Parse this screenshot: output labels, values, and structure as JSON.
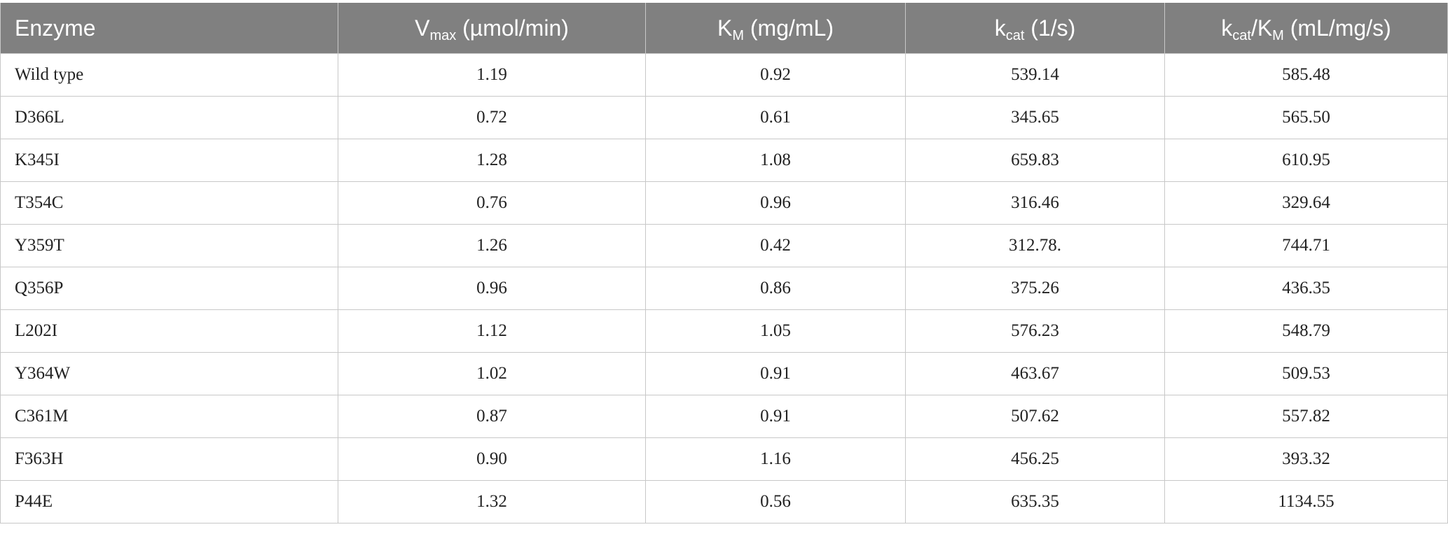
{
  "table": {
    "header": [
      [
        "Enzyme"
      ],
      [
        "V",
        "max",
        " (µmol/min)"
      ],
      [
        "K",
        "M",
        " (mg/mL)"
      ],
      [
        "k",
        "cat",
        " (1/s)"
      ],
      [
        "k",
        "cat",
        "/K",
        "M",
        " (mL/mg/s)"
      ]
    ],
    "rows": [
      [
        "Wild type",
        "1.19",
        "0.92",
        "539.14",
        "585.48"
      ],
      [
        "D366L",
        "0.72",
        "0.61",
        "345.65",
        "565.50"
      ],
      [
        "K345I",
        "1.28",
        "1.08",
        "659.83",
        "610.95"
      ],
      [
        "T354C",
        "0.76",
        "0.96",
        "316.46",
        "329.64"
      ],
      [
        "Y359T",
        "1.26",
        "0.42",
        "312.78.",
        "744.71"
      ],
      [
        "Q356P",
        "0.96",
        "0.86",
        "375.26",
        "436.35"
      ],
      [
        "L202I",
        "1.12",
        "1.05",
        "576.23",
        "548.79"
      ],
      [
        "Y364W",
        "1.02",
        "0.91",
        "463.67",
        "509.53"
      ],
      [
        "C361M",
        "0.87",
        "0.91",
        "507.62",
        "557.82"
      ],
      [
        "F363H",
        "0.90",
        "1.16",
        "456.25",
        "393.32"
      ],
      [
        "P44E",
        "1.32",
        "0.56",
        "635.35",
        "1134.55"
      ]
    ]
  }
}
